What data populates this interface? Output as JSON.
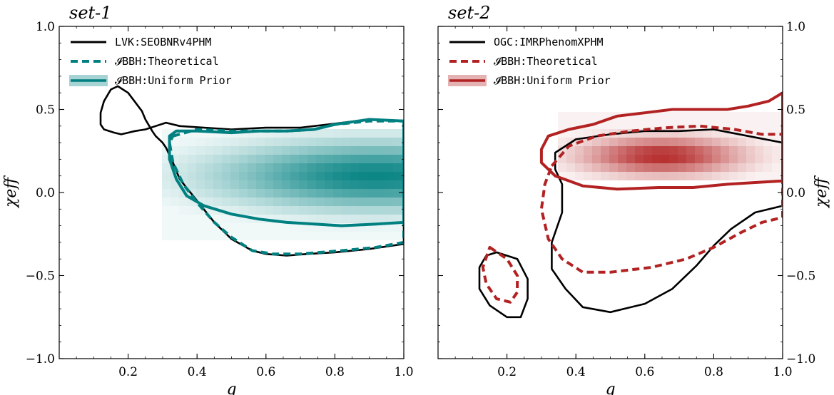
{
  "chart_data": [
    {
      "type": "contour",
      "title": "set-1",
      "xlabel": "q",
      "ylabel": "χeff",
      "ylabel_side": "left",
      "xlim": [
        0.0,
        1.0
      ],
      "ylim": [
        -1.0,
        1.0
      ],
      "xticks": [
        0.2,
        0.4,
        0.6,
        0.8,
        1.0
      ],
      "xtick_labels": [
        "0.2",
        "0.4",
        "0.6",
        "0.8",
        "1.0"
      ],
      "yticks": [
        -1.0,
        -0.5,
        0.0,
        0.5,
        1.0
      ],
      "ytick_labels": [
        "−1.0",
        "−0.5",
        "0.0",
        "0.5",
        "1.0"
      ],
      "legend_position": "top-left",
      "accent_color": "#008080",
      "legend": [
        {
          "label": "LVK:SEOBNRv4PHM",
          "style": "solid",
          "color": "#000000"
        },
        {
          "label": "𝓘BBH:Theoretical",
          "style": "dashed",
          "color": "#008080"
        },
        {
          "label": "𝓘BBH:Uniform Prior",
          "style": "solid-with-band",
          "color": "#008080"
        }
      ],
      "density_peak": {
        "q": 0.92,
        "chi_eff": 0.1
      },
      "series": [
        {
          "name": "LVK:SEOBNRv4PHM",
          "style": "solid",
          "color": "#000000",
          "contours": [
            [
              [
                0.17,
                0.64
              ],
              [
                0.2,
                0.6
              ],
              [
                0.24,
                0.49
              ],
              [
                0.25,
                0.44
              ],
              [
                0.27,
                0.37
              ],
              [
                0.28,
                0.34
              ],
              [
                0.3,
                0.3
              ],
              [
                0.31,
                0.27
              ],
              [
                0.33,
                0.18
              ],
              [
                0.35,
                0.08
              ],
              [
                0.4,
                -0.05
              ],
              [
                0.45,
                -0.18
              ],
              [
                0.5,
                -0.28
              ],
              [
                0.56,
                -0.35
              ],
              [
                0.6,
                -0.37
              ],
              [
                0.66,
                -0.38
              ],
              [
                0.72,
                -0.37
              ],
              [
                0.8,
                -0.36
              ],
              [
                0.9,
                -0.34
              ],
              [
                1.0,
                -0.31
              ],
              [
                1.0,
                0.43
              ],
              [
                0.9,
                0.44
              ],
              [
                0.78,
                0.41
              ],
              [
                0.7,
                0.39
              ],
              [
                0.6,
                0.39
              ],
              [
                0.5,
                0.38
              ],
              [
                0.42,
                0.39
              ],
              [
                0.35,
                0.4
              ],
              [
                0.31,
                0.42
              ],
              [
                0.28,
                0.4
              ],
              [
                0.25,
                0.38
              ],
              [
                0.22,
                0.37
              ],
              [
                0.2,
                0.36
              ],
              [
                0.18,
                0.35
              ],
              [
                0.16,
                0.36
              ],
              [
                0.13,
                0.38
              ],
              [
                0.12,
                0.41
              ],
              [
                0.12,
                0.48
              ],
              [
                0.13,
                0.55
              ],
              [
                0.15,
                0.62
              ],
              [
                0.17,
                0.64
              ]
            ]
          ]
        },
        {
          "name": "𝓘BBH:Theoretical",
          "style": "dashed",
          "color": "#008080",
          "contours": [
            [
              [
                0.33,
                0.34
              ],
              [
                0.4,
                0.38
              ],
              [
                0.5,
                0.37
              ],
              [
                0.58,
                0.37
              ],
              [
                0.66,
                0.37
              ],
              [
                0.74,
                0.38
              ],
              [
                0.8,
                0.41
              ],
              [
                0.9,
                0.43
              ],
              [
                1.0,
                0.43
              ],
              [
                1.0,
                -0.3
              ],
              [
                0.92,
                -0.33
              ],
              [
                0.82,
                -0.35
              ],
              [
                0.7,
                -0.37
              ],
              [
                0.62,
                -0.37
              ],
              [
                0.56,
                -0.35
              ],
              [
                0.5,
                -0.27
              ],
              [
                0.45,
                -0.18
              ],
              [
                0.4,
                -0.06
              ],
              [
                0.36,
                0.05
              ],
              [
                0.33,
                0.18
              ],
              [
                0.32,
                0.3
              ],
              [
                0.33,
                0.34
              ]
            ]
          ]
        },
        {
          "name": "𝓘BBH:Uniform Prior",
          "style": "solid",
          "color": "#008080",
          "contours": [
            [
              [
                0.32,
                0.34
              ],
              [
                0.34,
                0.37
              ],
              [
                0.4,
                0.37
              ],
              [
                0.5,
                0.36
              ],
              [
                0.58,
                0.37
              ],
              [
                0.66,
                0.37
              ],
              [
                0.74,
                0.38
              ],
              [
                0.8,
                0.41
              ],
              [
                0.9,
                0.44
              ],
              [
                1.0,
                0.43
              ],
              [
                1.0,
                -0.18
              ],
              [
                0.92,
                -0.19
              ],
              [
                0.82,
                -0.2
              ],
              [
                0.74,
                -0.19
              ],
              [
                0.66,
                -0.18
              ],
              [
                0.58,
                -0.16
              ],
              [
                0.5,
                -0.13
              ],
              [
                0.42,
                -0.08
              ],
              [
                0.37,
                -0.02
              ],
              [
                0.34,
                0.08
              ],
              [
                0.32,
                0.2
              ],
              [
                0.32,
                0.34
              ]
            ]
          ]
        }
      ]
    },
    {
      "type": "contour",
      "title": "set-2",
      "xlabel": "q",
      "ylabel": "χeff",
      "ylabel_side": "right",
      "xlim": [
        0.0,
        1.0
      ],
      "ylim": [
        -1.0,
        1.0
      ],
      "xticks": [
        0.2,
        0.4,
        0.6,
        0.8,
        1.0
      ],
      "xtick_labels": [
        "0.2",
        "0.4",
        "0.6",
        "0.8",
        "1.0"
      ],
      "yticks": [
        -1.0,
        -0.5,
        0.0,
        0.5,
        1.0
      ],
      "ytick_labels": [
        "−1.0",
        "−0.5",
        "0.0",
        "0.5",
        "1.0"
      ],
      "legend_position": "top-left",
      "accent_color": "#b22222",
      "legend": [
        {
          "label": "OGC:IMRPhenomXPHM",
          "style": "solid",
          "color": "#000000"
        },
        {
          "label": "𝓘BBH:Theoretical",
          "style": "dashed",
          "color": "#b22222"
        },
        {
          "label": "𝓘BBH:Uniform Prior",
          "style": "solid-with-band",
          "color": "#b22222"
        }
      ],
      "density_peak": {
        "q": 0.65,
        "chi_eff": 0.22
      },
      "series": [
        {
          "name": "OGC:IMRPhenomXPHM",
          "style": "solid",
          "color": "#000000",
          "contours": [
            [
              [
                0.34,
                0.24
              ],
              [
                0.4,
                0.32
              ],
              [
                0.5,
                0.35
              ],
              [
                0.6,
                0.37
              ],
              [
                0.7,
                0.37
              ],
              [
                0.8,
                0.38
              ],
              [
                0.9,
                0.34
              ],
              [
                1.0,
                0.3
              ],
              [
                1.0,
                -0.08
              ],
              [
                0.92,
                -0.12
              ],
              [
                0.85,
                -0.22
              ],
              [
                0.8,
                -0.32
              ],
              [
                0.75,
                -0.44
              ],
              [
                0.68,
                -0.58
              ],
              [
                0.6,
                -0.67
              ],
              [
                0.5,
                -0.72
              ],
              [
                0.42,
                -0.69
              ],
              [
                0.37,
                -0.58
              ],
              [
                0.33,
                -0.46
              ],
              [
                0.33,
                -0.3
              ],
              [
                0.36,
                -0.12
              ],
              [
                0.36,
                0.05
              ],
              [
                0.34,
                0.14
              ],
              [
                0.34,
                0.24
              ]
            ],
            [
              [
                0.17,
                -0.36
              ],
              [
                0.23,
                -0.4
              ],
              [
                0.26,
                -0.52
              ],
              [
                0.26,
                -0.64
              ],
              [
                0.24,
                -0.75
              ],
              [
                0.2,
                -0.75
              ],
              [
                0.15,
                -0.68
              ],
              [
                0.12,
                -0.58
              ],
              [
                0.12,
                -0.45
              ],
              [
                0.14,
                -0.38
              ],
              [
                0.17,
                -0.36
              ]
            ]
          ]
        },
        {
          "name": "𝓘BBH:Theoretical",
          "style": "dashed",
          "color": "#b22222",
          "contours": [
            [
              [
                0.33,
                0.16
              ],
              [
                0.38,
                0.28
              ],
              [
                0.46,
                0.34
              ],
              [
                0.56,
                0.37
              ],
              [
                0.66,
                0.39
              ],
              [
                0.76,
                0.4
              ],
              [
                0.86,
                0.38
              ],
              [
                0.94,
                0.35
              ],
              [
                1.0,
                0.35
              ],
              [
                1.0,
                -0.15
              ],
              [
                0.94,
                -0.18
              ],
              [
                0.88,
                -0.24
              ],
              [
                0.8,
                -0.33
              ],
              [
                0.72,
                -0.4
              ],
              [
                0.62,
                -0.45
              ],
              [
                0.5,
                -0.48
              ],
              [
                0.42,
                -0.48
              ],
              [
                0.36,
                -0.4
              ],
              [
                0.32,
                -0.28
              ],
              [
                0.3,
                -0.1
              ],
              [
                0.31,
                0.05
              ],
              [
                0.33,
                0.16
              ]
            ],
            [
              [
                0.15,
                -0.33
              ],
              [
                0.2,
                -0.4
              ],
              [
                0.23,
                -0.5
              ],
              [
                0.23,
                -0.6
              ],
              [
                0.21,
                -0.66
              ],
              [
                0.17,
                -0.64
              ],
              [
                0.14,
                -0.55
              ],
              [
                0.13,
                -0.45
              ],
              [
                0.15,
                -0.33
              ]
            ]
          ]
        },
        {
          "name": "𝓘BBH:Uniform Prior",
          "style": "solid",
          "color": "#b22222",
          "contours": [
            [
              [
                0.3,
                0.26
              ],
              [
                0.32,
                0.34
              ],
              [
                0.38,
                0.38
              ],
              [
                0.45,
                0.41
              ],
              [
                0.52,
                0.46
              ],
              [
                0.6,
                0.48
              ],
              [
                0.68,
                0.5
              ],
              [
                0.76,
                0.5
              ],
              [
                0.84,
                0.5
              ],
              [
                0.9,
                0.52
              ],
              [
                0.96,
                0.55
              ],
              [
                1.0,
                0.6
              ],
              [
                1.0,
                0.07
              ],
              [
                0.92,
                0.06
              ],
              [
                0.84,
                0.05
              ],
              [
                0.74,
                0.03
              ],
              [
                0.64,
                0.03
              ],
              [
                0.52,
                0.02
              ],
              [
                0.42,
                0.04
              ],
              [
                0.34,
                0.1
              ],
              [
                0.3,
                0.18
              ],
              [
                0.3,
                0.26
              ]
            ]
          ]
        }
      ]
    }
  ]
}
